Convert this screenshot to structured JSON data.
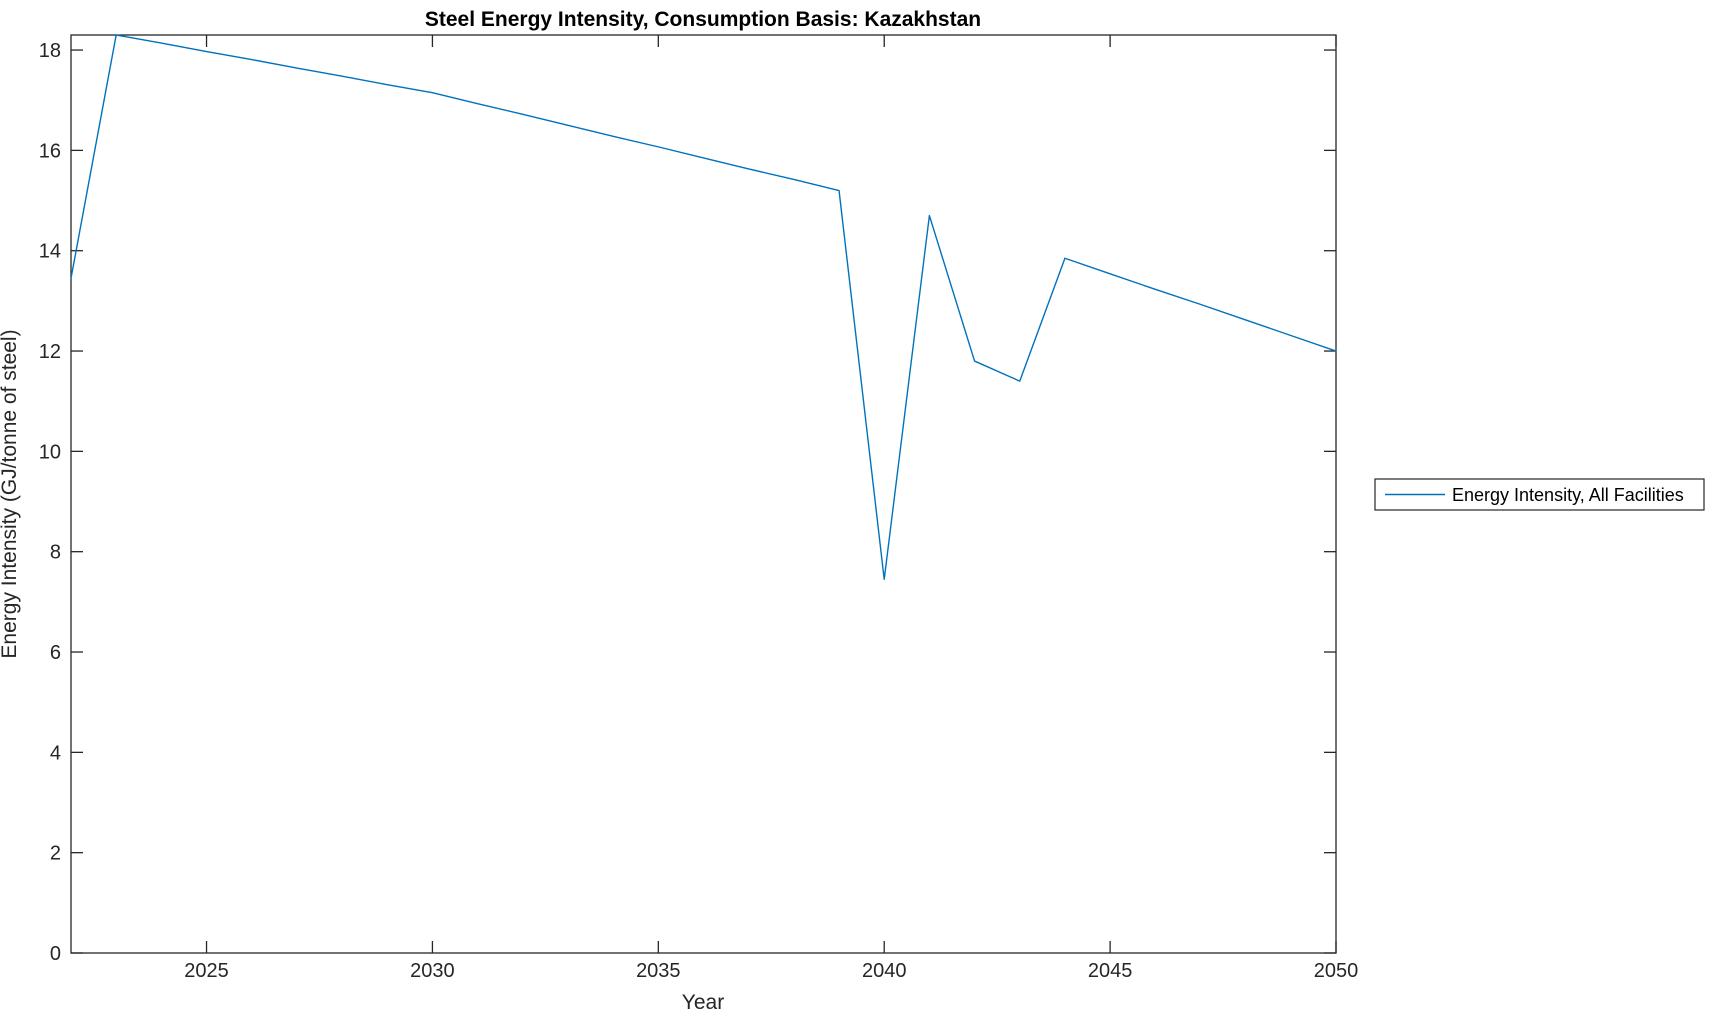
{
  "figure": {
    "background": "#ffffff",
    "axis_color": "#262626",
    "title_color": "#000000"
  },
  "title": "Steel Energy Intensity, Consumption Basis: Kazakhstan",
  "legend": {
    "position": "right-outside",
    "entries": [
      {
        "label": "Energy Intensity, All Facilities",
        "color": "#0072BD"
      }
    ]
  },
  "chart_data": {
    "type": "line",
    "title": "Steel Energy Intensity, Consumption Basis: Kazakhstan",
    "xlabel": "Year",
    "ylabel": "Energy Intensity (GJ/tonne of steel)",
    "xlim": [
      2022,
      2050
    ],
    "ylim": [
      0,
      18.3
    ],
    "xticks": [
      2025,
      2030,
      2035,
      2040,
      2045,
      2050
    ],
    "yticks": [
      0,
      2,
      4,
      6,
      8,
      10,
      12,
      14,
      16,
      18
    ],
    "grid": false,
    "legend_position": "right-outside",
    "x": [
      2022,
      2023,
      2024,
      2025,
      2026,
      2027,
      2028,
      2029,
      2030,
      2031,
      2032,
      2033,
      2034,
      2035,
      2036,
      2037,
      2038,
      2039,
      2040,
      2041,
      2042,
      2043,
      2044,
      2045,
      2046,
      2047,
      2048,
      2049,
      2050
    ],
    "series": [
      {
        "name": "Energy Intensity, All Facilities",
        "color": "#0072BD",
        "values": [
          13.45,
          18.3,
          18.14,
          17.97,
          17.81,
          17.64,
          17.48,
          17.31,
          17.15,
          16.93,
          16.72,
          16.5,
          16.28,
          16.07,
          15.85,
          15.63,
          15.42,
          15.2,
          7.45,
          14.7,
          11.8,
          11.4,
          13.85,
          13.54,
          13.23,
          12.93,
          12.62,
          12.31,
          12.0
        ]
      }
    ]
  }
}
